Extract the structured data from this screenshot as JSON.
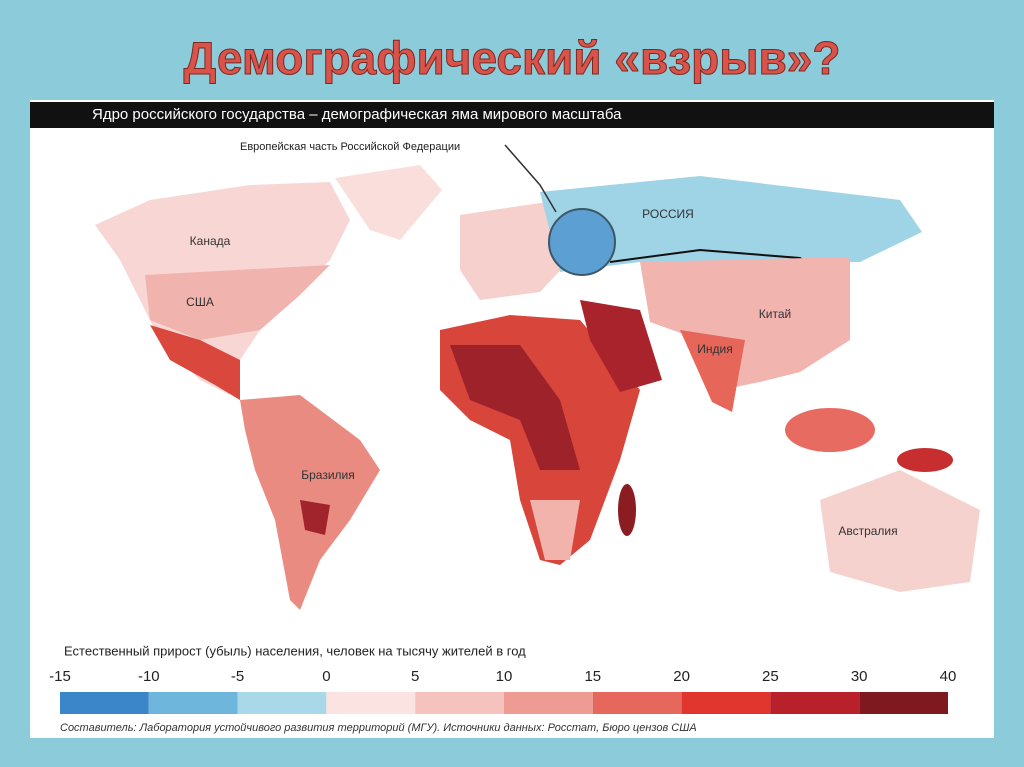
{
  "slide": {
    "title": "Демографический «взрыв»?"
  },
  "map": {
    "header": "Ядро российского государства – демографическая яма мирового масштаба",
    "annotation": "Европейская часть Российской Федерации",
    "labels": [
      "РОССИЯ",
      "Канада",
      "США",
      "Китай",
      "Индия",
      "Бразилия",
      "Австралия"
    ],
    "legend": {
      "title": "Естественный прирост (убыль) населения, человек на тысячу жителей в год",
      "ticks": [
        -15,
        -10,
        -5,
        0,
        5,
        10,
        15,
        20,
        25,
        30,
        40
      ],
      "colors": [
        "#3a86c8",
        "#6fb6dc",
        "#a9d8e8",
        "#fbe3e2",
        "#f6c2bd",
        "#ee9c93",
        "#e6685c",
        "#e0362d",
        "#b8202a",
        "#7e1a1f"
      ]
    },
    "source": "Составитель: Лаборатория устойчивого развития территорий (МГУ).   Источники данных: Росстат, Бюро цензов США"
  }
}
